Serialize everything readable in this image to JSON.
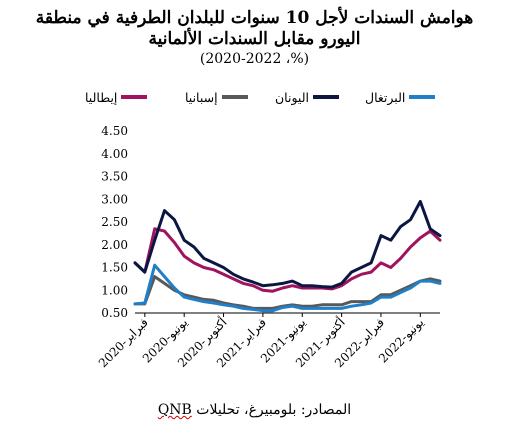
{
  "title": {
    "line1": "هوامش السندات لأجل 10 سنوات للبلدان الطرفية في منطقة",
    "line2": "اليورو مقابل السندات الألمانية",
    "line3": "(%، 2020-2022)"
  },
  "source": {
    "prefix": "المصادر: بلومبيرغ، تحليلات",
    "brand": "QNB"
  },
  "colors": {
    "italy": "#a0135e",
    "spain": "#595959",
    "greece": "#0b1742",
    "portugal": "#1f7fc7",
    "axis": "#000000"
  },
  "chart_data": {
    "type": "line",
    "title": "هوامش السندات لأجل 10 سنوات للبلدان الطرفية في منطقة اليورو مقابل السندات الألمانية (%، 2020-2022)",
    "x_tick_labels": [
      "فبراير-2020",
      "يونيو-2020",
      "أكتوبر-2020",
      "فبراير-2021",
      "يونيو-2021",
      "أكتوبر-2021",
      "فبراير-2022",
      "يونيو-2022"
    ],
    "x": [
      "2020-01",
      "2020-02",
      "2020-03",
      "2020-04",
      "2020-05",
      "2020-06",
      "2020-07",
      "2020-08",
      "2020-09",
      "2020-10",
      "2020-11",
      "2020-12",
      "2021-01",
      "2021-02",
      "2021-03",
      "2021-04",
      "2021-05",
      "2021-06",
      "2021-07",
      "2021-08",
      "2021-09",
      "2021-10",
      "2021-11",
      "2021-12",
      "2022-01",
      "2022-02",
      "2022-03",
      "2022-04",
      "2022-05",
      "2022-06",
      "2022-07",
      "2022-08"
    ],
    "y_ticks": [
      "0.50",
      "1.00",
      "1.50",
      "2.00",
      "2.50",
      "3.00",
      "3.50",
      "4.00",
      "4.50"
    ],
    "ylim": [
      0.5,
      4.5
    ],
    "series": [
      {
        "name": "إيطاليا",
        "key": "italy",
        "values": [
          1.6,
          1.4,
          2.35,
          2.3,
          2.05,
          1.75,
          1.6,
          1.5,
          1.45,
          1.35,
          1.25,
          1.15,
          1.1,
          1.0,
          0.98,
          1.05,
          1.1,
          1.05,
          1.05,
          1.05,
          1.03,
          1.1,
          1.25,
          1.35,
          1.4,
          1.6,
          1.5,
          1.7,
          1.95,
          2.15,
          2.3,
          2.1
        ]
      },
      {
        "name": "إسبانيا",
        "key": "spain",
        "values": [
          0.7,
          0.7,
          1.3,
          1.15,
          1.0,
          0.9,
          0.85,
          0.8,
          0.78,
          0.72,
          0.68,
          0.65,
          0.6,
          0.6,
          0.6,
          0.65,
          0.68,
          0.65,
          0.65,
          0.68,
          0.68,
          0.68,
          0.75,
          0.75,
          0.75,
          0.9,
          0.9,
          1.0,
          1.1,
          1.2,
          1.25,
          1.2
        ]
      },
      {
        "name": "اليونان",
        "key": "greece",
        "values": [
          1.6,
          1.4,
          2.1,
          2.75,
          2.55,
          2.1,
          1.95,
          1.7,
          1.6,
          1.5,
          1.35,
          1.25,
          1.18,
          1.1,
          1.12,
          1.15,
          1.2,
          1.1,
          1.1,
          1.08,
          1.07,
          1.15,
          1.4,
          1.5,
          1.6,
          2.2,
          2.1,
          2.4,
          2.55,
          2.95,
          2.35,
          2.2
        ]
      },
      {
        "name": "البرتغال",
        "key": "portugal",
        "values": [
          0.7,
          0.72,
          1.55,
          1.3,
          1.05,
          0.85,
          0.8,
          0.75,
          0.72,
          0.68,
          0.65,
          0.6,
          0.58,
          0.55,
          0.55,
          0.62,
          0.65,
          0.6,
          0.6,
          0.6,
          0.6,
          0.6,
          0.65,
          0.68,
          0.72,
          0.85,
          0.85,
          0.95,
          1.05,
          1.2,
          1.2,
          1.15
        ]
      }
    ],
    "grid": false,
    "legend_position": "top"
  }
}
